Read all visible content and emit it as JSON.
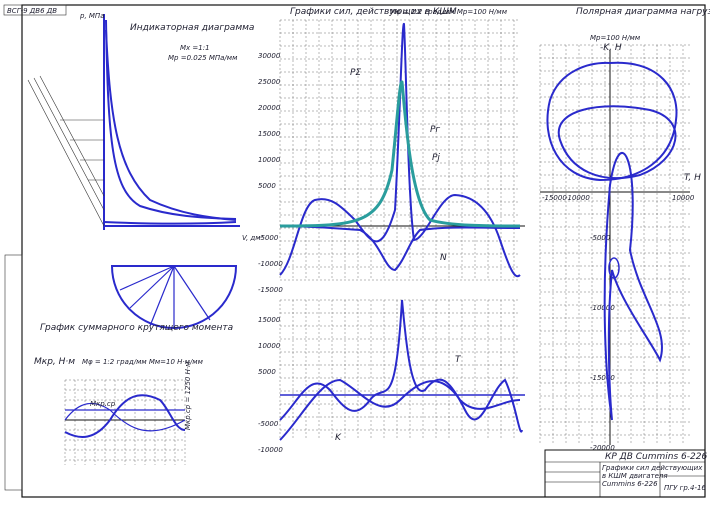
{
  "stamp": "ВСГ-9 ДВ6 ДВ",
  "indicator_diagram": {
    "title": "Индикаторная диаграмма",
    "scale_x": "Mх =1:1",
    "scale_p": "Mр =0.025 МПа/мм",
    "p_label": "p, МПа",
    "v_label": "V, дм³"
  },
  "forces_chart": {
    "title": "Графики сил, действующих в КШМ",
    "scale": "Mφ = 1:2 град/мм   Mр=100 Н/мм",
    "curve_labels": [
      "Pг",
      "Pj",
      "PΣ",
      "N",
      "K",
      "T"
    ],
    "yticks": [
      "30000",
      "25000",
      "20000",
      "15000",
      "10000",
      "5000",
      "-5000",
      "-10000",
      "-15000"
    ],
    "lower_yticks": [
      "15000",
      "10000",
      "5000",
      "-5000",
      "-10000"
    ]
  },
  "polar_diagram": {
    "title": "Полярная диаграмма нагрузки на шатунную шейку",
    "scale": "Mр=100 Н/мм",
    "y_label": "-K, H",
    "x_label": "T, H",
    "xticks": [
      "-15000",
      "-10000",
      "10000"
    ],
    "yticks": [
      "-5000",
      "-10000",
      "-15000",
      "-20000"
    ]
  },
  "torque_chart": {
    "title": "График суммарного крутящего момента",
    "y_label": "Мкр, Н·м",
    "scale": "Mφ = 1:2 град/мм   Mм=10 Н·м/мм",
    "mean_label": "Мкр.ср",
    "side_label": "Мкр.ср = 1250 Н·м"
  },
  "title_block": {
    "title": "КР ДВ Cummins 6-226",
    "sheet": "ПГУ гр.4-16",
    "notes": [
      "Графики сил действующих",
      "в КШМ двигателя",
      "Cummins 6-226"
    ]
  }
}
